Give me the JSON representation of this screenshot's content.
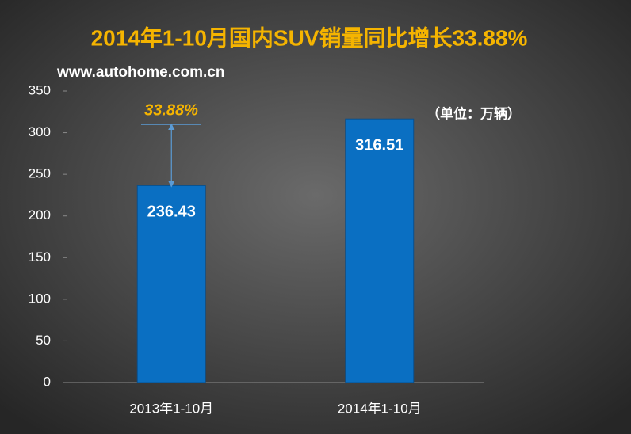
{
  "chart_data": {
    "type": "bar",
    "title": "2014年1-10月国内SUV销量同比增长33.88%",
    "subtitle": "www.autohome.com.cn",
    "unit_note": "（单位：万辆）",
    "growth_label": "33.88%",
    "categories": [
      "2013年1-10月",
      "2014年1-10月"
    ],
    "values": [
      236.43,
      316.51
    ],
    "color": "#0a6fc2",
    "ylim": [
      0,
      350
    ],
    "yticks": [
      0,
      50,
      100,
      150,
      200,
      250,
      300,
      350
    ],
    "grid": false
  }
}
